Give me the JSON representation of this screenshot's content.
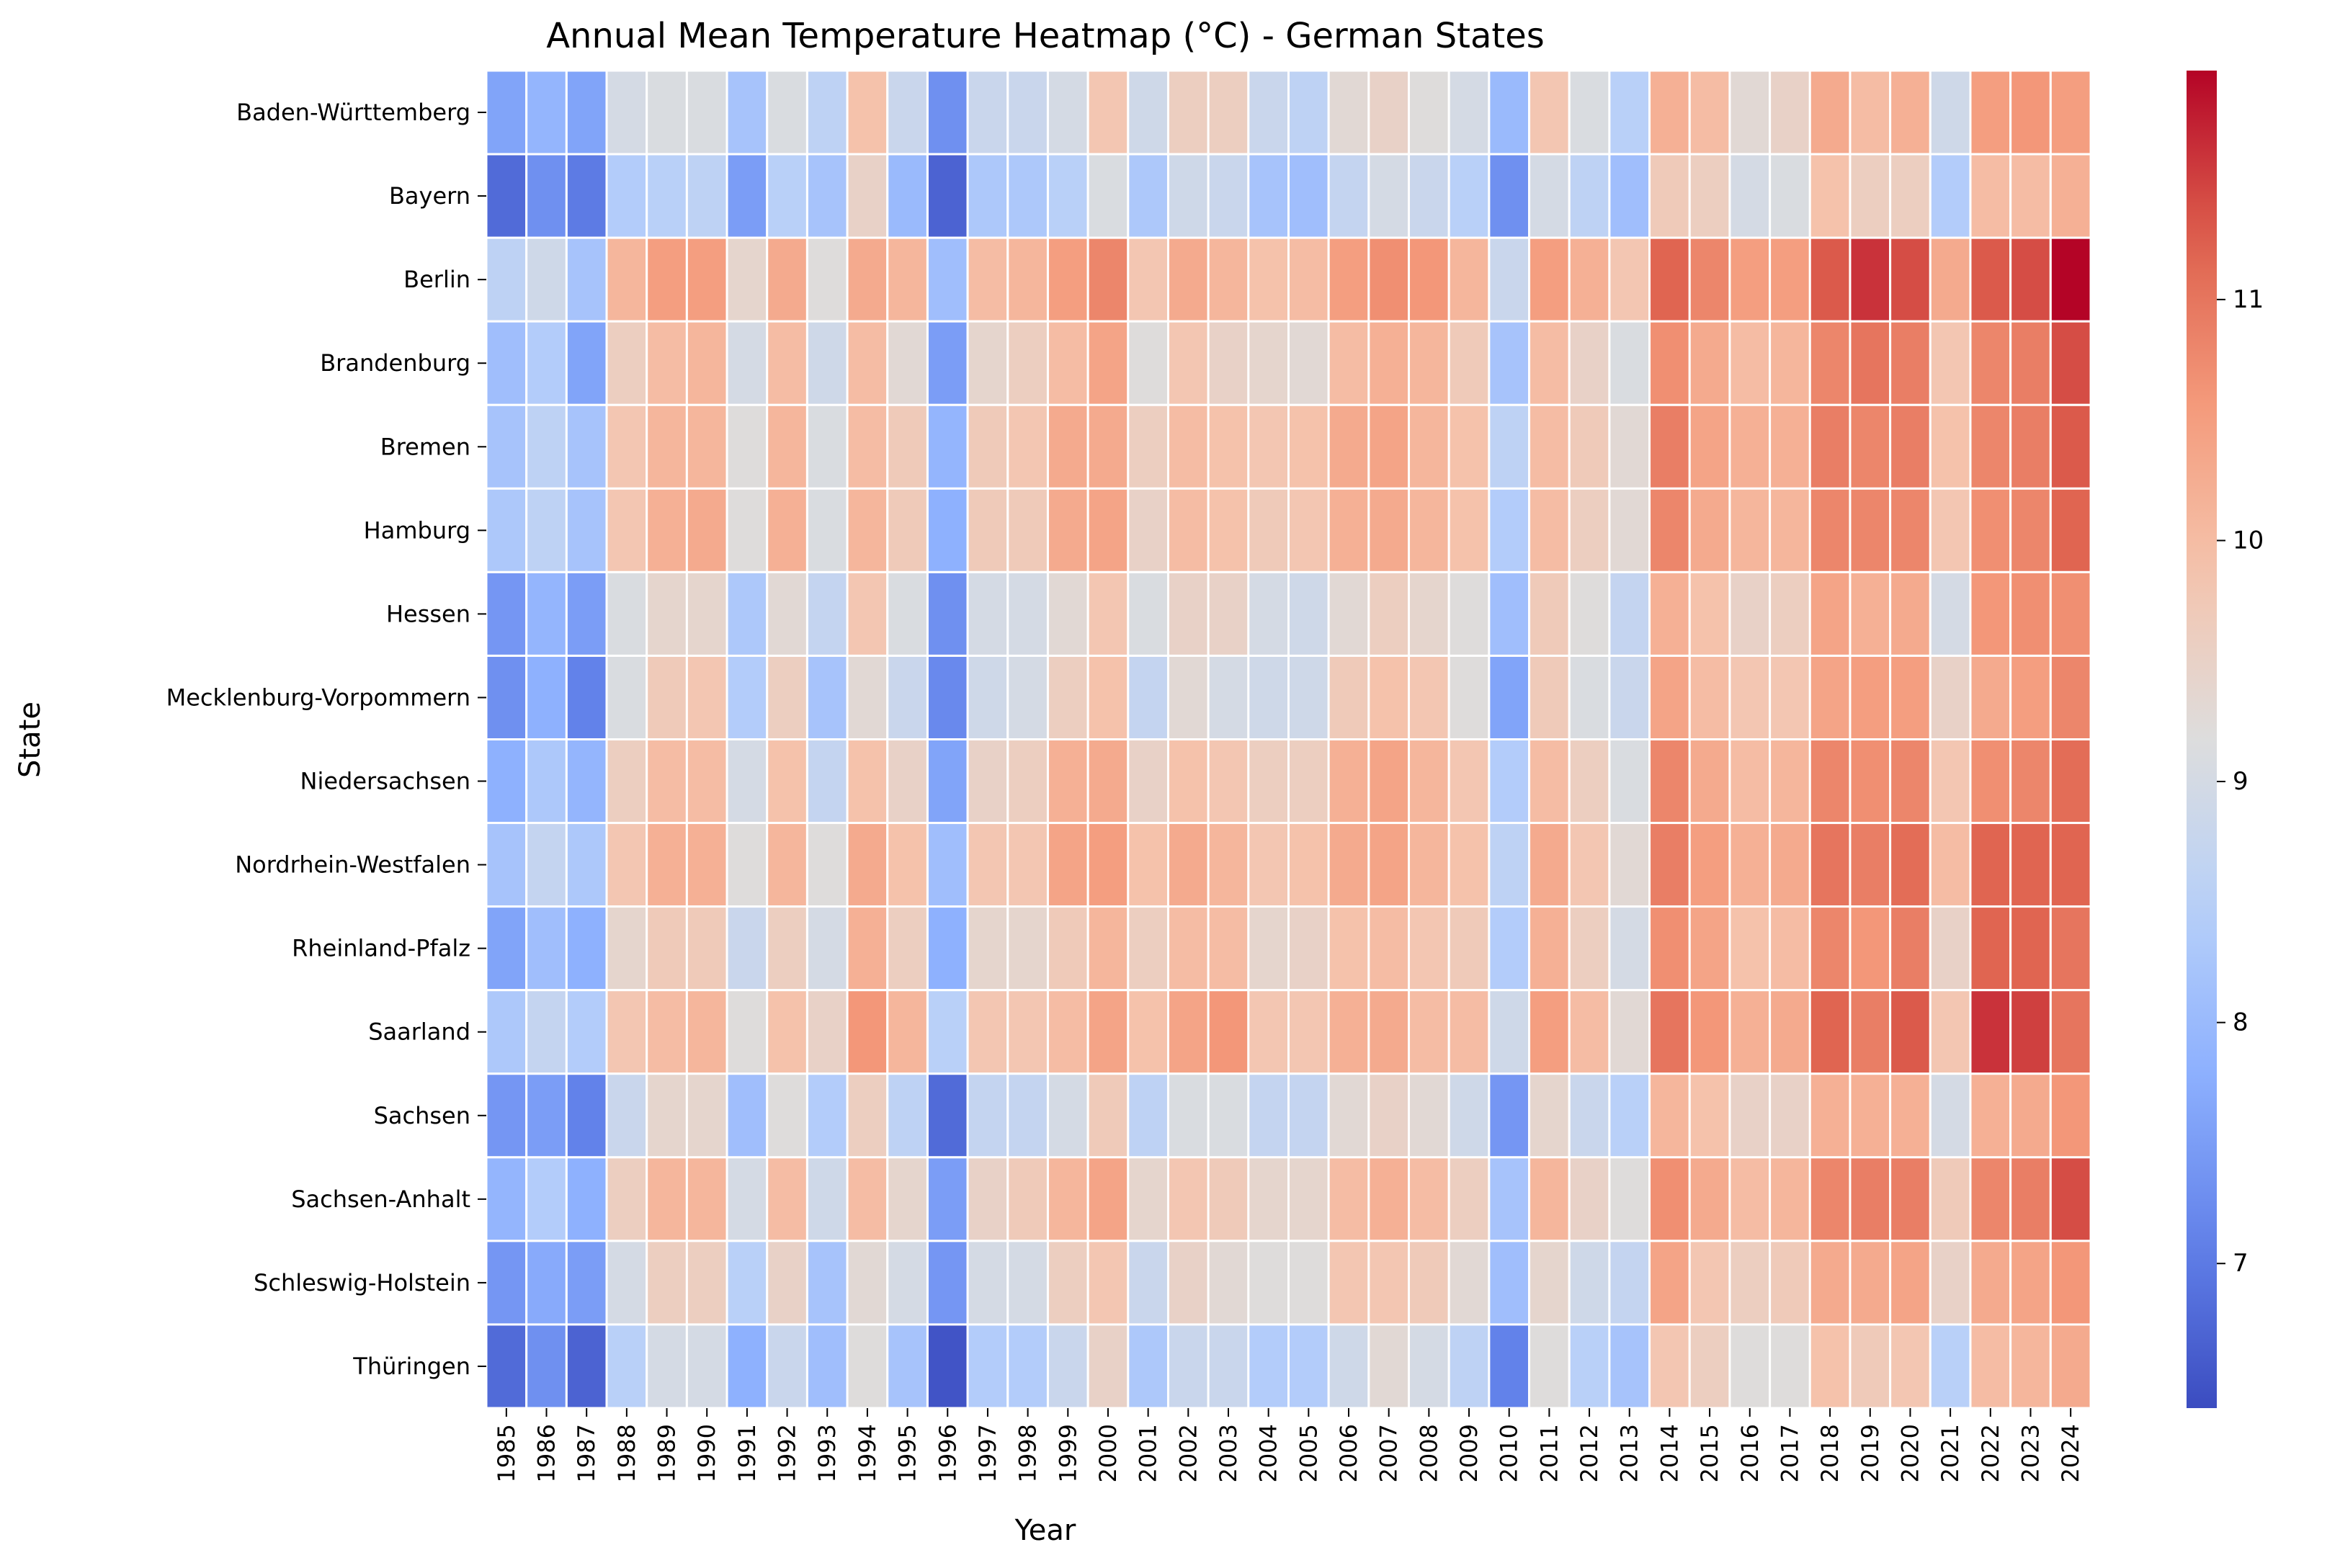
{
  "chart_data": {
    "type": "heatmap",
    "title": "Annual Mean Temperature Heatmap (°C) - German States",
    "xlabel": "Year",
    "ylabel": "State",
    "colormap": "coolwarm",
    "colorbar": {
      "min": 6.4,
      "max": 11.95,
      "ticks": [
        7,
        8,
        9,
        10,
        11
      ],
      "tick_labels": [
        "7",
        "8",
        "9",
        "10",
        "11"
      ]
    },
    "x": [
      "1985",
      "1986",
      "1987",
      "1988",
      "1989",
      "1990",
      "1991",
      "1992",
      "1993",
      "1994",
      "1995",
      "1996",
      "1997",
      "1998",
      "1999",
      "2000",
      "2001",
      "2002",
      "2003",
      "2004",
      "2005",
      "2006",
      "2007",
      "2008",
      "2009",
      "2010",
      "2011",
      "2012",
      "2013",
      "2014",
      "2015",
      "2016",
      "2017",
      "2018",
      "2019",
      "2020",
      "2021",
      "2022",
      "2023",
      "2024"
    ],
    "y": [
      "Baden-Württemberg",
      "Bayern",
      "Berlin",
      "Brandenburg",
      "Bremen",
      "Hamburg",
      "Hessen",
      "Mecklenburg-Vorpommern",
      "Niedersachsen",
      "Nordrhein-Westfalen",
      "Rheinland-Pfalz",
      "Saarland",
      "Sachsen",
      "Sachsen-Anhalt",
      "Schleswig-Holstein",
      "Thüringen"
    ],
    "values": [
      [
        7.6,
        7.9,
        7.6,
        9.0,
        9.1,
        9.1,
        8.2,
        9.1,
        8.6,
        9.9,
        8.8,
        7.3,
        8.8,
        8.8,
        9.0,
        9.8,
        8.9,
        9.6,
        9.6,
        8.8,
        8.6,
        9.3,
        9.5,
        9.2,
        9.0,
        8.0,
        9.8,
        9.1,
        8.5,
        10.2,
        10.0,
        9.3,
        9.5,
        10.3,
        10.0,
        10.2,
        8.9,
        10.5,
        10.6,
        10.5
      ],
      [
        6.8,
        7.3,
        7.0,
        8.4,
        8.5,
        8.6,
        7.5,
        8.5,
        8.2,
        9.5,
        8.0,
        6.7,
        8.3,
        8.3,
        8.5,
        9.1,
        8.3,
        8.9,
        8.8,
        8.2,
        8.1,
        8.7,
        9.0,
        8.8,
        8.5,
        7.3,
        9.0,
        8.6,
        8.1,
        9.7,
        9.6,
        9.0,
        9.1,
        9.9,
        9.6,
        9.6,
        8.4,
        10.0,
        10.0,
        10.2
      ],
      [
        8.6,
        8.9,
        8.2,
        10.1,
        10.5,
        10.5,
        9.4,
        10.3,
        9.2,
        10.3,
        10.1,
        8.1,
        10.0,
        10.1,
        10.5,
        10.8,
        9.8,
        10.3,
        10.1,
        9.9,
        10.0,
        10.5,
        10.7,
        10.6,
        10.1,
        8.8,
        10.5,
        10.2,
        9.8,
        11.2,
        10.8,
        10.5,
        10.5,
        11.3,
        11.6,
        11.4,
        10.3,
        11.3,
        11.4,
        11.95
      ],
      [
        8.1,
        8.4,
        7.6,
        9.6,
        10.0,
        10.1,
        9.0,
        10.0,
        8.9,
        10.0,
        9.3,
        7.5,
        9.4,
        9.6,
        10.0,
        10.4,
        9.2,
        9.8,
        9.5,
        9.4,
        9.3,
        10.0,
        10.2,
        10.1,
        9.7,
        8.2,
        10.0,
        9.5,
        9.1,
        10.7,
        10.3,
        10.0,
        10.1,
        10.8,
        11.0,
        10.9,
        9.8,
        10.8,
        10.9,
        11.4
      ],
      [
        8.2,
        8.6,
        8.2,
        9.8,
        10.1,
        10.1,
        9.2,
        10.1,
        9.1,
        10.0,
        9.7,
        7.9,
        9.7,
        9.8,
        10.3,
        10.3,
        9.6,
        10.0,
        9.9,
        9.8,
        9.9,
        10.3,
        10.4,
        10.1,
        9.9,
        8.6,
        10.0,
        9.7,
        9.3,
        10.9,
        10.4,
        10.2,
        10.2,
        10.9,
        10.8,
        10.9,
        9.9,
        10.8,
        10.9,
        11.3
      ],
      [
        8.3,
        8.6,
        8.2,
        9.8,
        10.2,
        10.3,
        9.2,
        10.2,
        9.1,
        10.1,
        9.7,
        7.8,
        9.7,
        9.7,
        10.3,
        10.4,
        9.5,
        10.0,
        9.9,
        9.7,
        9.8,
        10.2,
        10.3,
        10.1,
        9.9,
        8.4,
        10.0,
        9.6,
        9.3,
        10.8,
        10.3,
        10.1,
        10.1,
        10.8,
        10.8,
        10.8,
        9.8,
        10.7,
        10.8,
        11.2
      ],
      [
        7.4,
        7.9,
        7.5,
        9.1,
        9.4,
        9.4,
        8.3,
        9.3,
        8.7,
        9.8,
        9.1,
        7.3,
        9.0,
        9.0,
        9.3,
        9.8,
        9.1,
        9.5,
        9.5,
        9.0,
        8.9,
        9.3,
        9.6,
        9.4,
        9.2,
        8.1,
        9.7,
        9.2,
        8.7,
        10.2,
        9.9,
        9.5,
        9.6,
        10.4,
        10.2,
        10.3,
        9.0,
        10.6,
        10.7,
        10.7
      ],
      [
        7.3,
        7.8,
        7.1,
        9.1,
        9.7,
        9.8,
        8.4,
        9.6,
        8.2,
        9.3,
        8.8,
        7.2,
        8.9,
        9.0,
        9.6,
        9.9,
        8.7,
        9.3,
        9.0,
        8.9,
        8.9,
        9.7,
        9.9,
        9.8,
        9.2,
        7.6,
        9.7,
        9.1,
        8.8,
        10.4,
        10.0,
        9.8,
        9.8,
        10.4,
        10.5,
        10.5,
        9.5,
        10.3,
        10.5,
        10.8
      ],
      [
        7.8,
        8.3,
        7.9,
        9.6,
        10.0,
        10.0,
        9.0,
        9.9,
        8.7,
        9.9,
        9.5,
        7.6,
        9.5,
        9.6,
        10.2,
        10.3,
        9.5,
        9.9,
        9.8,
        9.6,
        9.6,
        10.2,
        10.4,
        10.1,
        9.8,
        8.4,
        10.0,
        9.6,
        9.1,
        10.8,
        10.3,
        10.0,
        10.1,
        10.8,
        10.7,
        10.8,
        9.8,
        10.7,
        10.8,
        11.1
      ],
      [
        8.2,
        8.7,
        8.3,
        9.8,
        10.2,
        10.2,
        9.2,
        10.1,
        9.2,
        10.3,
        9.9,
        8.1,
        9.8,
        9.8,
        10.4,
        10.5,
        9.9,
        10.3,
        10.1,
        9.8,
        9.9,
        10.3,
        10.4,
        10.1,
        9.9,
        8.6,
        10.3,
        9.8,
        9.3,
        10.9,
        10.5,
        10.2,
        10.3,
        11.0,
        10.9,
        11.1,
        10.0,
        11.2,
        11.2,
        11.2
      ],
      [
        7.6,
        8.1,
        7.8,
        9.4,
        9.7,
        9.7,
        8.8,
        9.6,
        9.0,
        10.2,
        9.6,
        7.8,
        9.4,
        9.4,
        9.7,
        10.1,
        9.6,
        10.0,
        10.0,
        9.4,
        9.5,
        9.9,
        10.0,
        9.8,
        9.7,
        8.4,
        10.2,
        9.6,
        9.0,
        10.7,
        10.4,
        9.9,
        10.0,
        10.8,
        10.6,
        10.9,
        9.5,
        11.2,
        11.2,
        11.0
      ],
      [
        8.3,
        8.7,
        8.4,
        9.8,
        10.0,
        10.1,
        9.2,
        9.9,
        9.5,
        10.6,
        10.1,
        8.5,
        9.8,
        9.8,
        10.0,
        10.4,
        9.9,
        10.4,
        10.6,
        9.8,
        9.8,
        10.2,
        10.3,
        10.0,
        10.0,
        8.9,
        10.5,
        10.0,
        9.3,
        11.0,
        10.6,
        10.2,
        10.3,
        11.2,
        10.9,
        11.3,
        9.8,
        11.6,
        11.5,
        11.0
      ],
      [
        7.4,
        7.5,
        7.1,
        8.8,
        9.4,
        9.4,
        8.1,
        9.2,
        8.4,
        9.6,
        8.6,
        6.8,
        8.7,
        8.7,
        9.0,
        9.7,
        8.6,
        9.1,
        9.1,
        8.7,
        8.7,
        9.3,
        9.5,
        9.3,
        8.9,
        7.4,
        9.4,
        8.8,
        8.5,
        10.1,
        9.9,
        9.5,
        9.5,
        10.2,
        10.2,
        10.2,
        9.0,
        10.2,
        10.3,
        10.6
      ],
      [
        7.9,
        8.4,
        7.8,
        9.6,
        10.1,
        10.1,
        9.0,
        10.0,
        8.9,
        10.0,
        9.4,
        7.5,
        9.5,
        9.7,
        10.1,
        10.4,
        9.4,
        9.8,
        9.7,
        9.4,
        9.4,
        10.0,
        10.2,
        10.0,
        9.6,
        8.2,
        10.1,
        9.5,
        9.2,
        10.7,
        10.3,
        10.0,
        10.1,
        10.8,
        10.9,
        10.9,
        9.7,
        10.8,
        10.9,
        11.4
      ],
      [
        7.4,
        7.7,
        7.5,
        9.0,
        9.6,
        9.6,
        8.5,
        9.5,
        8.2,
        9.3,
        9.0,
        7.4,
        9.0,
        9.0,
        9.6,
        9.8,
        8.8,
        9.5,
        9.3,
        9.2,
        9.2,
        9.8,
        9.8,
        9.7,
        9.3,
        8.1,
        9.4,
        8.9,
        8.7,
        10.4,
        9.8,
        9.6,
        9.7,
        10.3,
        10.3,
        10.4,
        9.5,
        10.3,
        10.4,
        10.6
      ],
      [
        6.8,
        7.3,
        6.7,
        8.5,
        9.0,
        9.0,
        7.8,
        8.8,
        8.1,
        9.2,
        8.2,
        6.5,
        8.4,
        8.4,
        8.8,
        9.5,
        8.3,
        8.8,
        8.8,
        8.4,
        8.4,
        8.9,
        9.3,
        9.0,
        8.6,
        7.1,
        9.2,
        8.5,
        8.2,
        9.8,
        9.6,
        9.2,
        9.2,
        9.9,
        9.7,
        9.8,
        8.5,
        10.0,
        10.1,
        10.3
      ]
    ]
  }
}
